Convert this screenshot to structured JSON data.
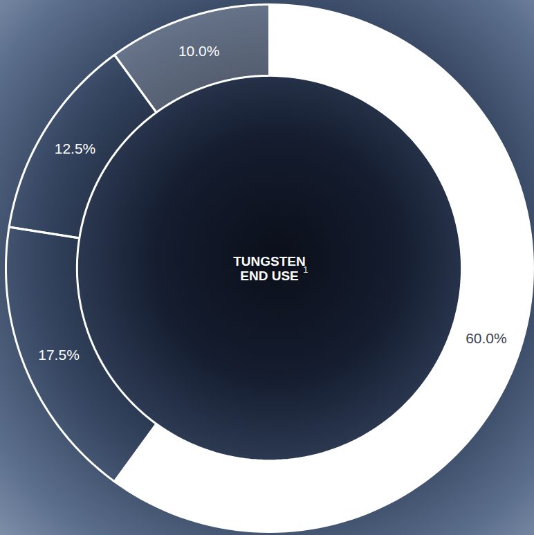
{
  "chart_data": {
    "type": "donut",
    "title": "TUNGSTEN END USE",
    "annotations": [
      "1"
    ],
    "values": [
      60,
      17.5,
      12.5,
      10
    ],
    "value_labels": [
      "60.0%",
      "17.5%",
      "12.5%",
      "10.0%"
    ],
    "colors": [
      "#ffffff",
      "none",
      "none",
      "rgba(255,255,255,0.22)"
    ],
    "data_labels": true,
    "tick_labels": false
  }
}
